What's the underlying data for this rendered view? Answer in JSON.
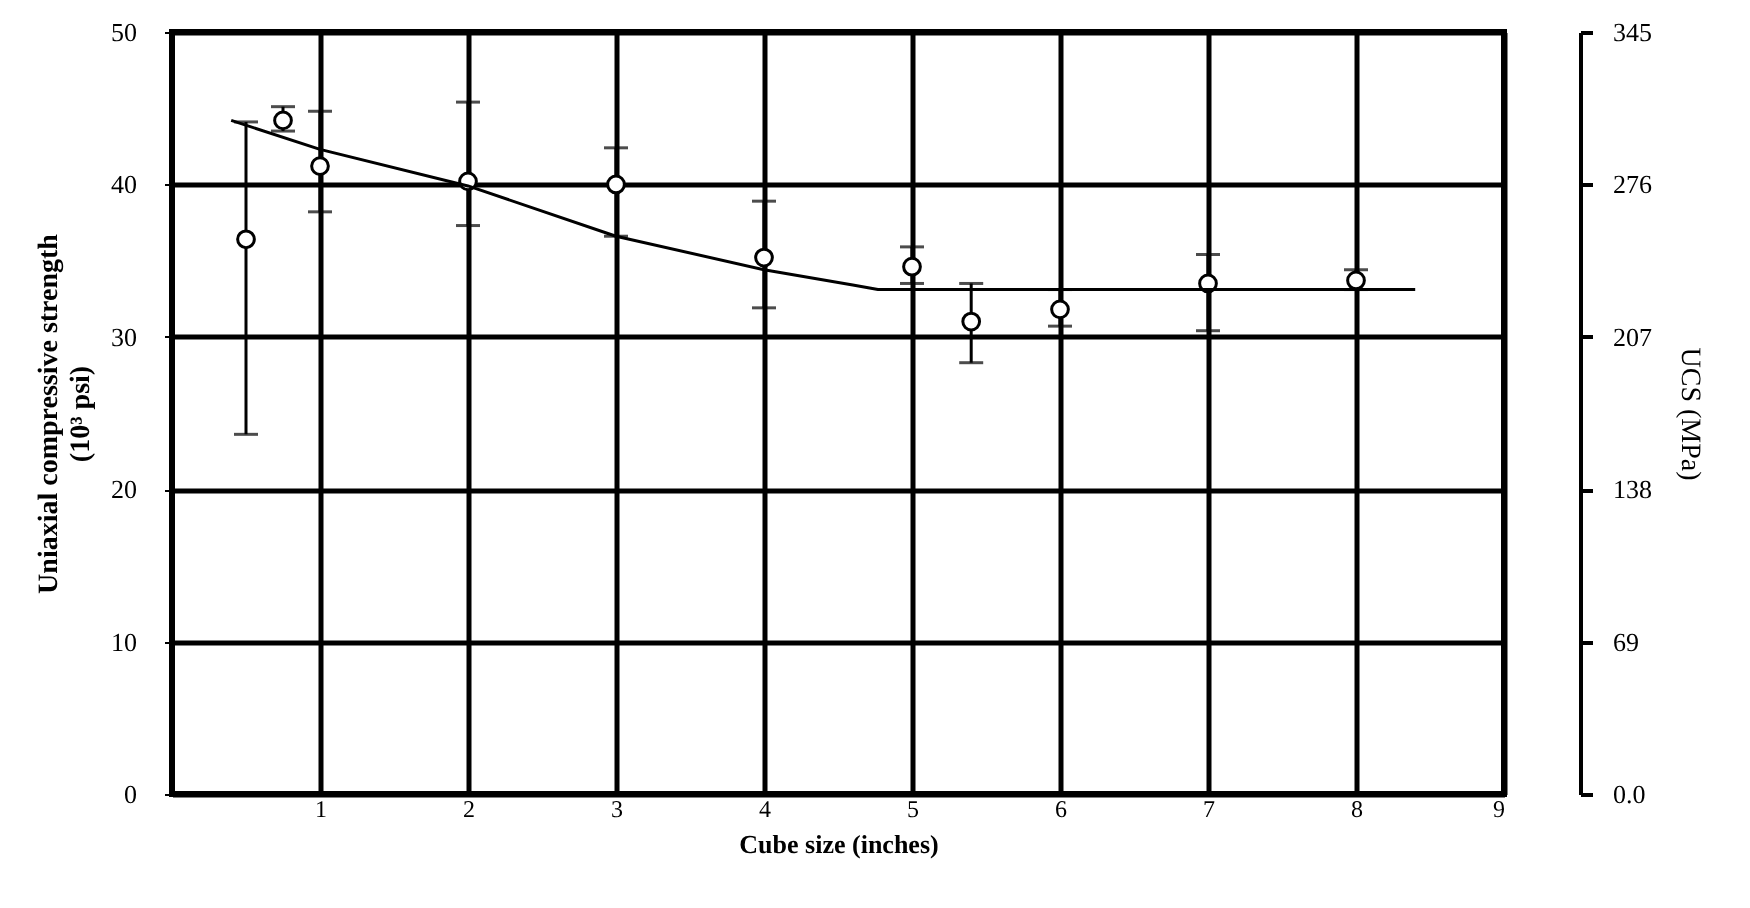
{
  "chart_data": {
    "type": "scatter",
    "xlabel": "Cube size (inches)",
    "ylabel": "Uniaxial compressive strength\n(10³ psi)",
    "y2label": "UCS (MPa)",
    "xlim": [
      0,
      9
    ],
    "xticks": [
      1,
      2,
      3,
      4,
      5,
      6,
      7,
      8,
      9
    ],
    "ylim": [
      0,
      50
    ],
    "yticks": [
      0,
      10,
      20,
      30,
      40,
      50
    ],
    "y2lim": [
      0,
      345
    ],
    "y2ticks": [
      {
        "value": 0,
        "label": "0.0"
      },
      69,
      138,
      207,
      276,
      345
    ],
    "grid": true,
    "marker": "circle",
    "series": [
      {
        "color": "#000000",
        "x": [
          0.5,
          0.75,
          1,
          2,
          3,
          4,
          5,
          5.4,
          6,
          7,
          8
        ],
        "values": [
          36.4,
          44.2,
          41.2,
          40.2,
          40.0,
          35.2,
          34.6,
          31.0,
          31.8,
          33.5,
          33.7
        ],
        "errors": [
          [
            23.6,
            44.1
          ],
          [
            43.5,
            45.1
          ],
          [
            38.2,
            44.8
          ],
          [
            37.3,
            45.4
          ],
          [
            36.6,
            42.4
          ],
          [
            31.9,
            38.9
          ],
          [
            33.5,
            35.9
          ],
          [
            28.3,
            33.5
          ],
          [
            30.7,
            33.1
          ],
          [
            30.4,
            35.4
          ],
          [
            33.1,
            34.4
          ]
        ]
      },
      {
        "type": "line",
        "color": "#000000",
        "marker": "none",
        "line_style": "solid",
        "x": [
          0.4,
          1,
          2,
          3,
          4,
          4.6,
          4.77,
          8.4
        ],
        "values": [
          44.2,
          42.3,
          39.9,
          36.6,
          34.4,
          33.4,
          33.1,
          33.1
        ]
      }
    ]
  }
}
